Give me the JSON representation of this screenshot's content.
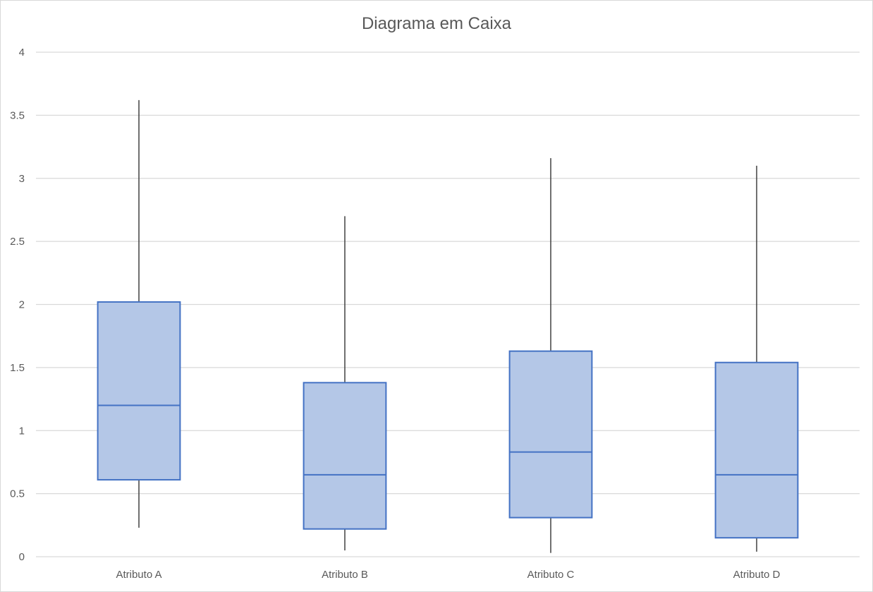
{
  "chart_data": {
    "type": "box",
    "title": "Diagrama em Caixa",
    "xlabel": "",
    "ylabel": "",
    "ylim": [
      0,
      4
    ],
    "yticks": [
      0,
      0.5,
      1,
      1.5,
      2,
      2.5,
      3,
      3.5,
      4
    ],
    "ytick_labels": [
      "0",
      "0.5",
      "1",
      "1.5",
      "2",
      "2.5",
      "3",
      "3.5",
      "4"
    ],
    "grid": true,
    "legend": "none",
    "categories": [
      "Atributo A",
      "Atributo B",
      "Atributo C",
      "Atributo D"
    ],
    "boxes": [
      {
        "category": "Atributo A",
        "min": 0.23,
        "q1": 0.61,
        "median": 1.2,
        "q3": 2.02,
        "max": 3.62
      },
      {
        "category": "Atributo B",
        "min": 0.05,
        "q1": 0.22,
        "median": 0.65,
        "q3": 1.38,
        "max": 2.7
      },
      {
        "category": "Atributo C",
        "min": 0.03,
        "q1": 0.31,
        "median": 0.83,
        "q3": 1.63,
        "max": 3.16
      },
      {
        "category": "Atributo D",
        "min": 0.04,
        "q1": 0.15,
        "median": 0.65,
        "q3": 1.54,
        "max": 3.1
      }
    ],
    "colors": {
      "box_fill": "#b4c7e7",
      "box_stroke": "#4472c4",
      "whisker": "#404040",
      "grid": "#d9d9d9",
      "text": "#595959"
    }
  }
}
